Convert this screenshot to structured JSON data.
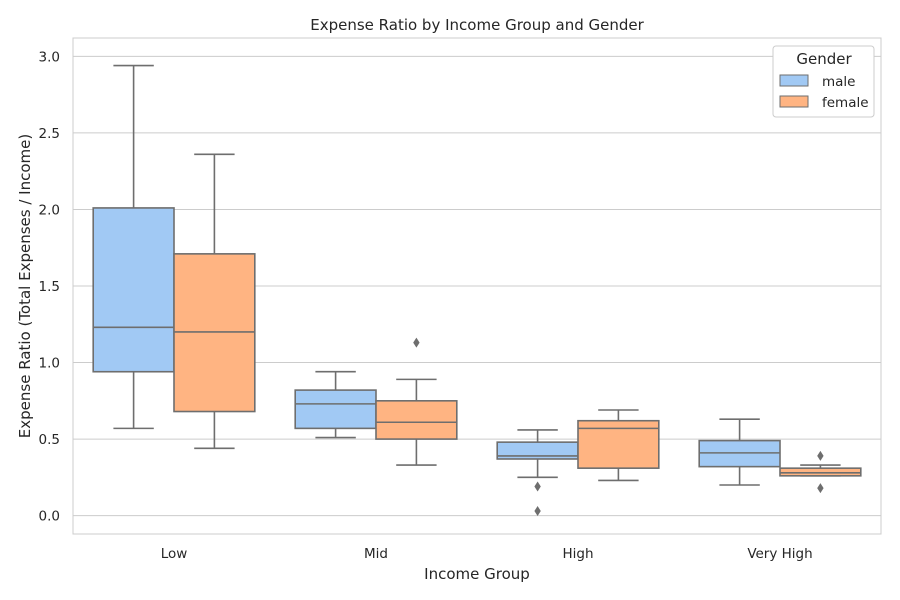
{
  "chart_data": {
    "type": "box",
    "title": "Expense Ratio by Income Group and Gender",
    "xlabel": "Income Group",
    "ylabel": "Expense Ratio (Total Expenses / Income)",
    "ylim": [
      -0.12,
      3.12
    ],
    "yticks": [
      "0.0",
      "0.5",
      "1.0",
      "1.5",
      "2.0",
      "2.5",
      "3.0"
    ],
    "grid": "horizontal",
    "categories": [
      "Low",
      "Mid",
      "High",
      "Very High"
    ],
    "legend": {
      "title": "Gender",
      "position": "top-right"
    },
    "series": [
      {
        "name": "male",
        "color": "#a1c9f4",
        "boxes": [
          {
            "whisker_low": 0.57,
            "q1": 0.94,
            "median": 1.23,
            "q3": 2.01,
            "whisker_high": 2.94,
            "outliers": []
          },
          {
            "whisker_low": 0.51,
            "q1": 0.57,
            "median": 0.73,
            "q3": 0.82,
            "whisker_high": 0.94,
            "outliers": []
          },
          {
            "whisker_low": 0.25,
            "q1": 0.37,
            "median": 0.39,
            "q3": 0.48,
            "whisker_high": 0.56,
            "outliers": [
              0.19,
              0.03
            ]
          },
          {
            "whisker_low": 0.2,
            "q1": 0.32,
            "median": 0.41,
            "q3": 0.49,
            "whisker_high": 0.63,
            "outliers": []
          }
        ]
      },
      {
        "name": "female",
        "color": "#ffb482",
        "boxes": [
          {
            "whisker_low": 0.44,
            "q1": 0.68,
            "median": 1.2,
            "q3": 1.71,
            "whisker_high": 2.36,
            "outliers": []
          },
          {
            "whisker_low": 0.33,
            "q1": 0.5,
            "median": 0.61,
            "q3": 0.75,
            "whisker_high": 0.89,
            "outliers": [
              1.13
            ]
          },
          {
            "whisker_low": 0.23,
            "q1": 0.31,
            "median": 0.57,
            "q3": 0.62,
            "whisker_high": 0.69,
            "outliers": []
          },
          {
            "whisker_low": 0.26,
            "q1": 0.26,
            "median": 0.28,
            "q3": 0.31,
            "whisker_high": 0.33,
            "outliers": [
              0.39,
              0.18
            ]
          }
        ]
      }
    ]
  }
}
